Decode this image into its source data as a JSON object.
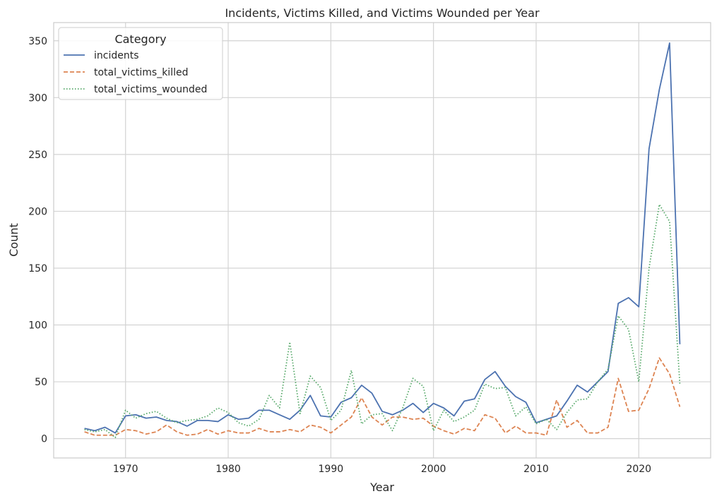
{
  "chart_data": {
    "type": "line",
    "title": "Incidents, Victims Killed, and Victims Wounded per Year",
    "xlabel": "Year",
    "ylabel": "Count",
    "xlim": [
      1963,
      2027
    ],
    "ylim": [
      -17,
      366
    ],
    "xticks": [
      1970,
      1980,
      1990,
      2000,
      2010,
      2020
    ],
    "yticks": [
      0,
      50,
      100,
      150,
      200,
      250,
      300,
      350
    ],
    "grid": true,
    "legend": {
      "title": "Category",
      "placement": "top-left"
    },
    "x": [
      1966,
      1967,
      1968,
      1969,
      1970,
      1971,
      1972,
      1973,
      1974,
      1975,
      1976,
      1977,
      1978,
      1979,
      1980,
      1981,
      1982,
      1983,
      1984,
      1985,
      1986,
      1987,
      1988,
      1989,
      1990,
      1991,
      1992,
      1993,
      1994,
      1995,
      1996,
      1997,
      1998,
      1999,
      2000,
      2001,
      2002,
      2003,
      2004,
      2005,
      2006,
      2007,
      2008,
      2009,
      2010,
      2011,
      2012,
      2013,
      2014,
      2015,
      2016,
      2017,
      2018,
      2019,
      2020,
      2021,
      2022,
      2023,
      2024
    ],
    "series": [
      {
        "name": "incidents",
        "color": "#4c72b0",
        "dash": "solid",
        "values": [
          9,
          7,
          10,
          5,
          20,
          21,
          18,
          19,
          16,
          15,
          11,
          16,
          16,
          15,
          21,
          17,
          18,
          25,
          25,
          21,
          17,
          25,
          38,
          20,
          19,
          32,
          36,
          47,
          40,
          24,
          21,
          25,
          31,
          23,
          31,
          27,
          20,
          33,
          35,
          52,
          59,
          46,
          37,
          32,
          14,
          17,
          20,
          33,
          47,
          41,
          50,
          59,
          119,
          124,
          116,
          255,
          307,
          348,
          83
        ]
      },
      {
        "name": "total_victims_killed",
        "color": "#dd8452",
        "dash": "dashed",
        "values": [
          6,
          3,
          3,
          3,
          8,
          7,
          4,
          6,
          12,
          6,
          3,
          4,
          8,
          4,
          7,
          5,
          5,
          9,
          6,
          6,
          8,
          6,
          12,
          10,
          5,
          12,
          19,
          36,
          19,
          12,
          19,
          19,
          17,
          18,
          11,
          7,
          4,
          9,
          7,
          21,
          18,
          5,
          11,
          5,
          5,
          3,
          34,
          10,
          16,
          5,
          5,
          10,
          53,
          24,
          25,
          44,
          71,
          57,
          28
        ]
      },
      {
        "name": "total_victims_wounded",
        "color": "#55a868",
        "dash": "dotted",
        "values": [
          8,
          6,
          8,
          1,
          25,
          18,
          22,
          24,
          18,
          14,
          16,
          17,
          20,
          27,
          23,
          14,
          11,
          17,
          38,
          27,
          85,
          22,
          55,
          45,
          16,
          25,
          60,
          13,
          21,
          22,
          7,
          27,
          53,
          46,
          7,
          25,
          15,
          19,
          25,
          48,
          44,
          45,
          20,
          28,
          13,
          17,
          8,
          23,
          34,
          35,
          50,
          61,
          108,
          96,
          50,
          150,
          206,
          191,
          48
        ]
      }
    ]
  }
}
